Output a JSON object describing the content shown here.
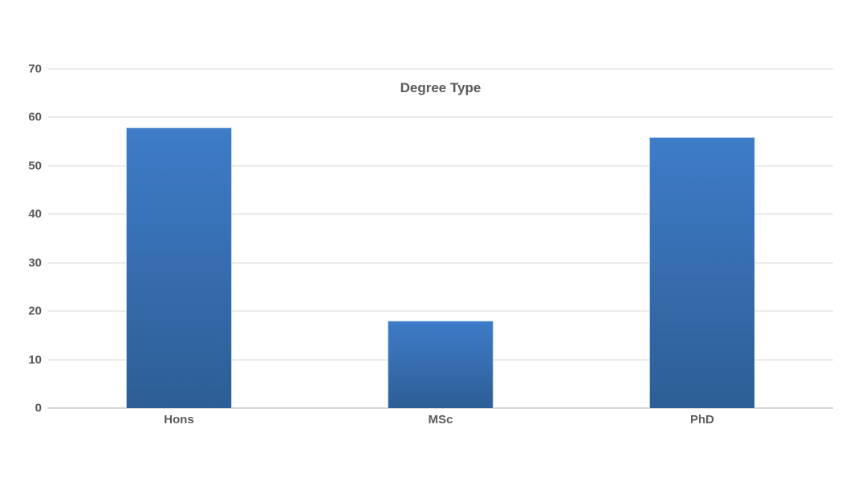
{
  "chart_data": {
    "type": "bar",
    "title": "Degree Type",
    "categories": [
      "Hons",
      "MSc",
      "PhD"
    ],
    "values": [
      58,
      18,
      56
    ],
    "xlabel": "",
    "ylabel": "",
    "ylim": [
      0,
      70
    ],
    "yticks": [
      0,
      10,
      20,
      30,
      40,
      50,
      60,
      70
    ],
    "grid": "on",
    "legend": "none",
    "colors": {
      "bar_gradient_top": "#3E7CC8",
      "bar_gradient_bottom": "#2D5E95",
      "bar_border": "#B9D4EE",
      "gridline": "#D9D9D9",
      "axis_line": "#D6D6D6",
      "text": "#595959",
      "background": "#FFFFFF"
    }
  }
}
